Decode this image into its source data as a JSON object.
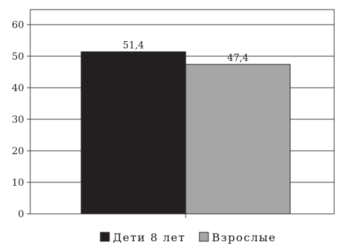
{
  "chart_data": {
    "type": "bar",
    "categories": [
      "Дети 8 лет",
      "Взрослые"
    ],
    "values": [
      51.4,
      47.4
    ],
    "data_labels": [
      "51,4",
      "47,4"
    ],
    "colors": [
      "#231f20",
      "#a6a6a6"
    ],
    "ylim": [
      0,
      60
    ],
    "yticks": [
      "0",
      "10",
      "20",
      "30",
      "40",
      "50",
      "60"
    ],
    "grid": true,
    "legend": {
      "placement": "bottom",
      "items": [
        "Дети 8 лет",
        "Взрослые"
      ]
    }
  }
}
